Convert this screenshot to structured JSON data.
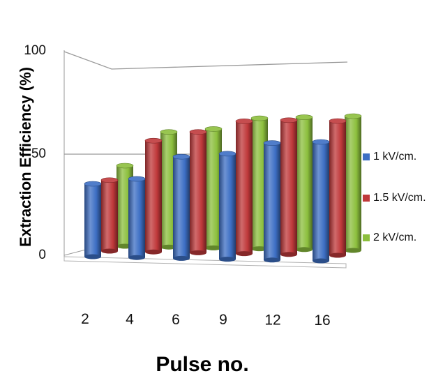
{
  "chart_data": {
    "type": "bar",
    "title": "",
    "xlabel": "Pulse no.",
    "ylabel": "Extraction Efficiency (%)",
    "categories": [
      "2",
      "4",
      "6",
      "9",
      "12",
      "16"
    ],
    "yticks": [
      "0",
      "50",
      "100"
    ],
    "ylim": [
      0,
      100
    ],
    "grid": true,
    "legend_position": "right",
    "series": [
      {
        "name": "1 kV/cm.",
        "color": "#3d6fc4",
        "values": [
          38,
          41,
          53,
          55,
          61,
          62
        ]
      },
      {
        "name": "1.5 kV/cm.",
        "color": "#c0393b",
        "values": [
          37,
          58,
          63,
          69,
          70,
          70
        ]
      },
      {
        "name": "2 kV/cm.",
        "color": "#8cbf3d",
        "values": [
          42,
          60,
          62,
          68,
          69,
          70
        ]
      }
    ]
  }
}
